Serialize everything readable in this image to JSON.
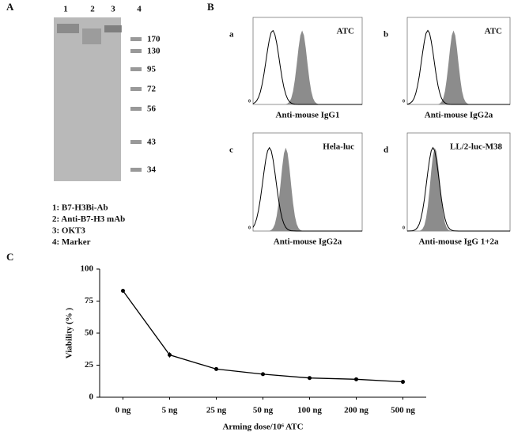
{
  "panel_a": {
    "label": "A",
    "lanes": [
      "1",
      "2",
      "3",
      "4"
    ],
    "markers": [
      170,
      130,
      95,
      72,
      56,
      43,
      34
    ],
    "legend": [
      "1: B7-H3Bi-Ab",
      "2: Anti-B7-H3 mAb",
      "3: OKT3",
      "4: Marker"
    ]
  },
  "panel_b": {
    "label": "B",
    "plots": [
      {
        "letter": "a",
        "sample": "ATC",
        "axis_label": "Anti-mouse IgG1",
        "origin": "0"
      },
      {
        "letter": "b",
        "sample": "ATC",
        "axis_label": "Anti-mouse IgG2a",
        "origin": "0"
      },
      {
        "letter": "c",
        "sample": "Hela-luc",
        "axis_label": "Anti-mouse IgG2a",
        "origin": "0"
      },
      {
        "letter": "d",
        "sample": "LL/2-luc-M38",
        "axis_label": "Anti-mouse IgG 1+2a",
        "origin": "0"
      }
    ]
  },
  "chart_data": {
    "type": "line",
    "panel_label": "C",
    "y_label": "Viability (% )",
    "x_label": "Arming dose/10⁶ ATC",
    "categories": [
      "0 ng",
      "5 ng",
      "25 ng",
      "50 ng",
      "100 ng",
      "200 ng",
      "500 ng"
    ],
    "values": [
      83,
      33,
      22,
      18,
      15,
      14,
      12
    ],
    "errors": [
      1,
      2,
      0.5,
      0.5,
      0.5,
      0.5,
      0.5
    ],
    "color": "#000000",
    "ylim": [
      0,
      100
    ],
    "yticks": [
      0,
      25,
      50,
      75,
      100
    ]
  }
}
